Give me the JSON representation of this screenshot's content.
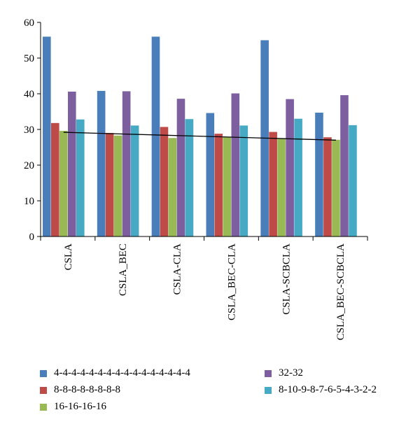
{
  "chart_data": {
    "type": "bar",
    "title": "",
    "xlabel": "",
    "ylabel": "",
    "ylim": [
      0,
      60
    ],
    "yticks": [
      0,
      10,
      20,
      30,
      40,
      50,
      60
    ],
    "categories": [
      "CSLA",
      "CSLA_BEC",
      "CSLA-CLA",
      "CSLA_BEC-CLA",
      "CSLA-SCBCLA",
      "CSLA_BEC-SCBCLA"
    ],
    "series": [
      {
        "name": "4-4-4-4-4-4-4-4-4-4-4-4-4-4-4-4",
        "color": "#4a7ebb",
        "values": [
          56,
          40.8,
          56,
          34.6,
          55,
          34.7
        ]
      },
      {
        "name": "8-8-8-8-8-8-8-8",
        "color": "#be4b48",
        "values": [
          31.8,
          29,
          30.7,
          28.8,
          29.3,
          27.8
        ]
      },
      {
        "name": "16-16-16-16",
        "color": "#98b954",
        "values": [
          29.6,
          28.3,
          27.6,
          27.8,
          27.3,
          27.1
        ]
      },
      {
        "name": "32-32",
        "color": "#7d5fa0",
        "values": [
          40.6,
          40.7,
          38.6,
          40.1,
          38.5,
          39.6
        ]
      },
      {
        "name": "8-10-9-8-7-6-5-4-3-2-2",
        "color": "#46aac5",
        "values": [
          32.8,
          31.1,
          32.9,
          31.1,
          33,
          31.2
        ]
      }
    ],
    "trendline": {
      "series": "16-16-16-16",
      "start": 29.2,
      "end": 27.0,
      "color": "#000000"
    },
    "grid": false,
    "legend": "bottom"
  }
}
